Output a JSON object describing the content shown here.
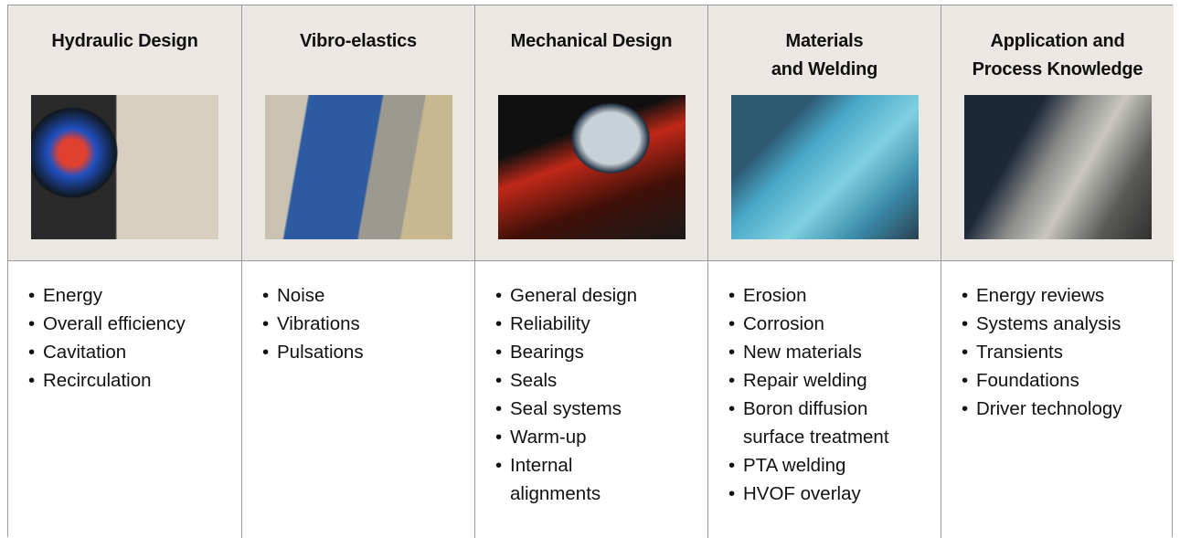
{
  "columns": [
    {
      "title": "Hydraulic Design",
      "items": [
        "Energy",
        "Overall efficiency",
        "Cavitation",
        "Recirculation"
      ]
    },
    {
      "title": "Vibro-elastics",
      "items": [
        "Noise",
        "Vibrations",
        "Pulsations"
      ]
    },
    {
      "title": "Mechanical Design",
      "items": [
        "General design",
        "Reliability",
        "Bearings",
        "Seals",
        "Seal systems",
        "Warm-up",
        "Internal\nalignments"
      ]
    },
    {
      "title": "Materials\nand Welding",
      "items": [
        "Erosion",
        "Corrosion",
        "New materials",
        "Repair welding",
        "Boron diffusion\nsurface treatment",
        "PTA welding",
        "HVOF overlay"
      ]
    },
    {
      "title": "Application and\nProcess Knowledge",
      "items": [
        "Energy reviews",
        "Systems analysis",
        "Transients",
        "Foundations",
        "Driver technology"
      ]
    }
  ]
}
